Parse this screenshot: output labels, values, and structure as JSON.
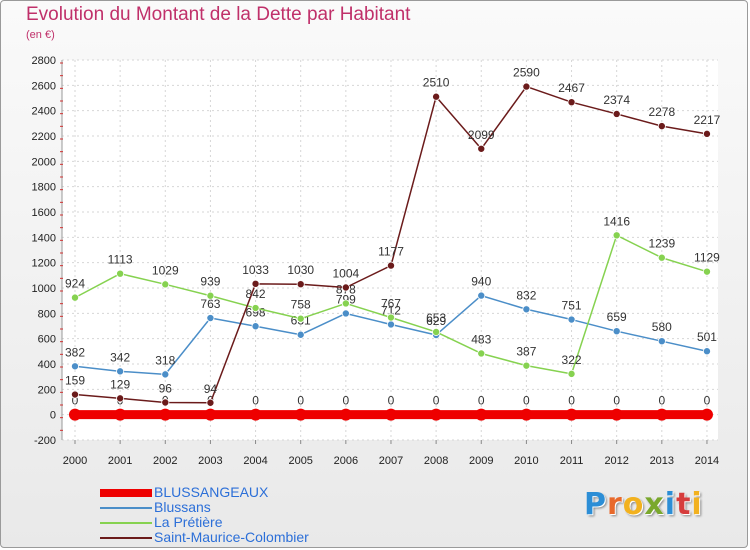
{
  "page": {
    "title": "Evolution du Montant de la Dette par Habitant",
    "subtitle": "(en €)"
  },
  "brand": {
    "letters": [
      "P",
      "r",
      "o",
      "x",
      "i",
      "t",
      "i"
    ],
    "colors": [
      "#2c8ed6",
      "#e8692b",
      "#f2b11e",
      "#7aa82d",
      "#2c8ed6",
      "#d63c3c",
      "#f2b11e"
    ]
  },
  "chart_data": {
    "type": "line",
    "x": [
      2000,
      2001,
      2002,
      2003,
      2004,
      2005,
      2006,
      2007,
      2008,
      2009,
      2010,
      2011,
      2012,
      2013,
      2014
    ],
    "ylim": [
      -200,
      2800
    ],
    "yticks": [
      -200,
      0,
      200,
      400,
      600,
      800,
      1000,
      1200,
      1400,
      1600,
      1800,
      2000,
      2200,
      2400,
      2600,
      2800
    ],
    "grid": true,
    "legend_position": "bottom-left",
    "series": [
      {
        "name": "BLUSSANGEAUX",
        "color": "#ee0000",
        "values": [
          0,
          0,
          0,
          0,
          0,
          0,
          0,
          0,
          0,
          0,
          0,
          0,
          0,
          0,
          0
        ]
      },
      {
        "name": "Blussans",
        "color": "#4b8ec8",
        "values": [
          382,
          342,
          318,
          763,
          698,
          631,
          799,
          712,
          629,
          940,
          832,
          751,
          659,
          580,
          501
        ]
      },
      {
        "name": "La Prétière",
        "color": "#86d250",
        "values": [
          924,
          1113,
          1029,
          939,
          842,
          758,
          878,
          767,
          653,
          483,
          387,
          322,
          1416,
          1239,
          1129
        ]
      },
      {
        "name": "Saint-Maurice-Colombier",
        "color": "#6b1b1b",
        "values": [
          159,
          129,
          96,
          94,
          1033,
          1030,
          1004,
          1177,
          2510,
          2099,
          2590,
          2467,
          2374,
          2278,
          2217
        ]
      }
    ]
  }
}
